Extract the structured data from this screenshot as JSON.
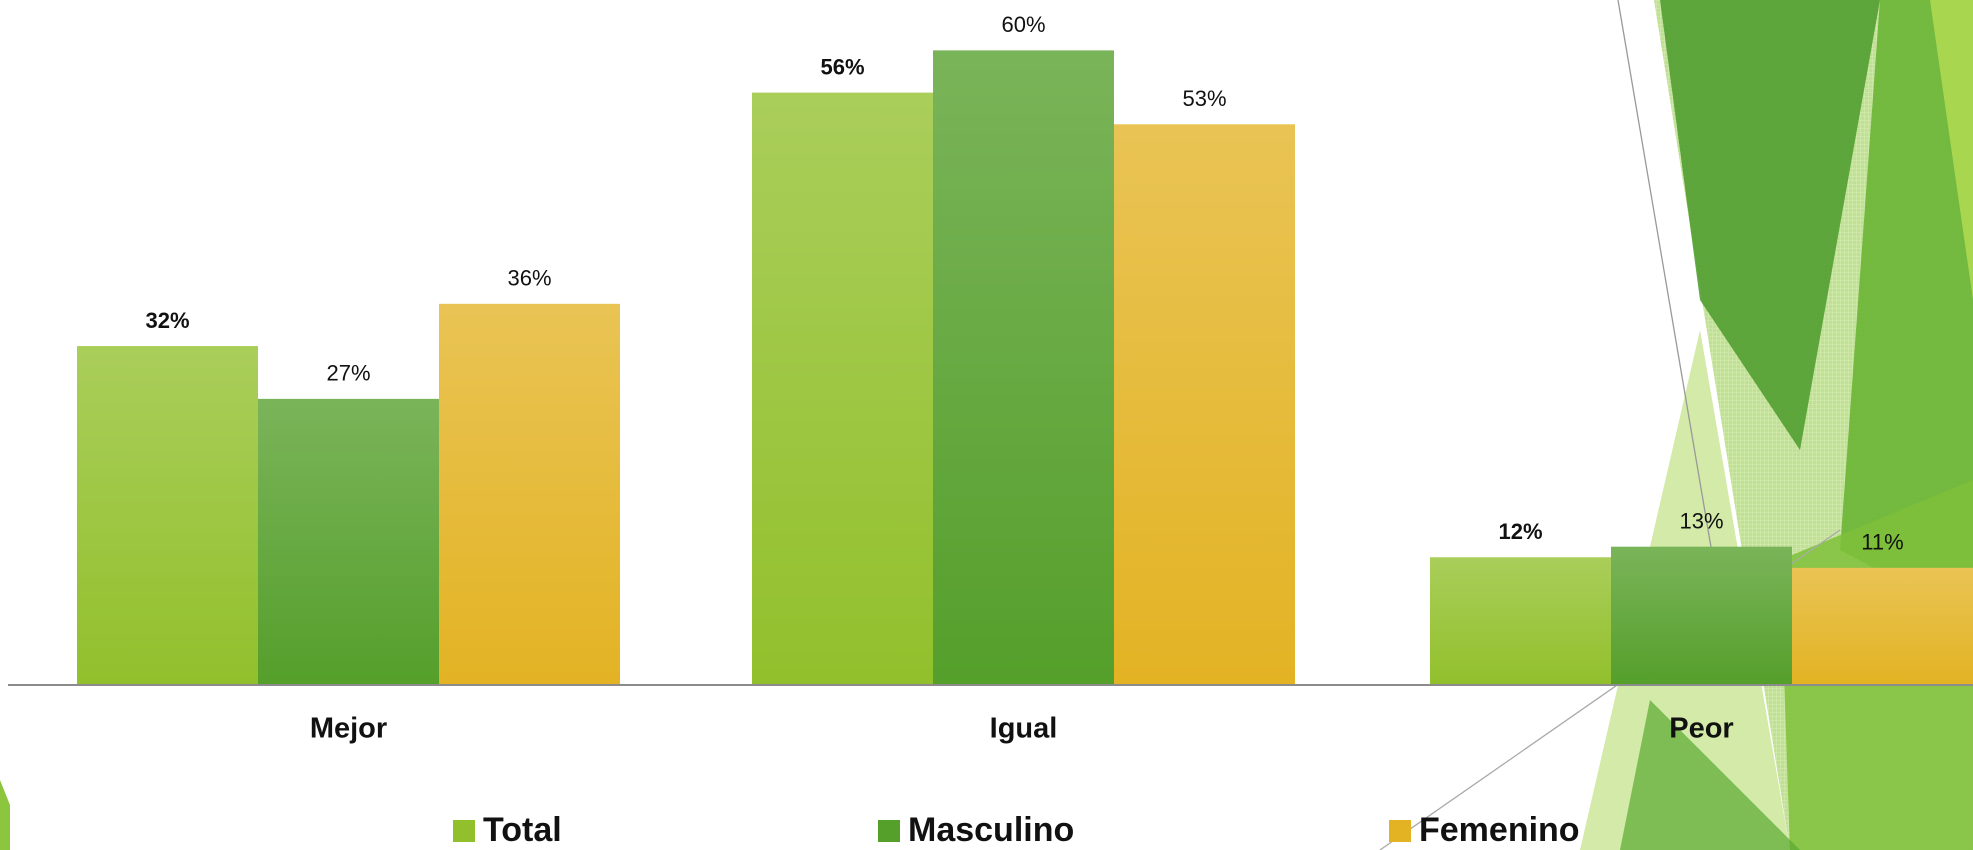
{
  "chart_data": {
    "type": "bar",
    "categories": [
      "Mejor",
      "Igual",
      "Peor"
    ],
    "series": [
      {
        "name": "Total",
        "color": "#92c02c",
        "values": [
          32,
          56,
          12
        ],
        "value_labels": [
          "32%",
          "56%",
          "12%"
        ]
      },
      {
        "name": "Masculino",
        "color": "#559f2b",
        "values": [
          27,
          60,
          13
        ],
        "value_labels": [
          "27%",
          "60%",
          "13%"
        ]
      },
      {
        "name": "Femenino",
        "color": "#e3b324",
        "values": [
          36,
          53,
          11
        ],
        "value_labels": [
          "36%",
          "53%",
          "11%"
        ]
      }
    ]
  }
}
